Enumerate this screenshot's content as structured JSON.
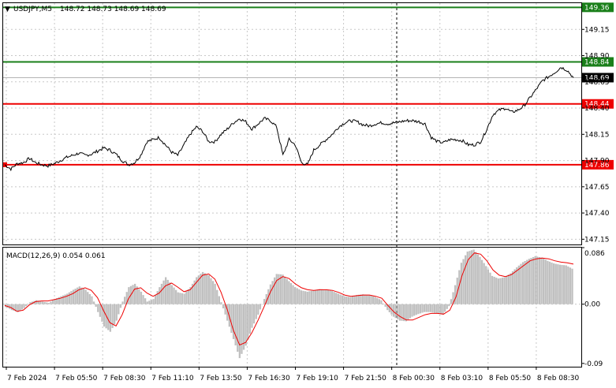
{
  "header": {
    "symbol_text": "USDJPY,M5",
    "ohlc_text": "148.72 148.73 148.69 148.69"
  },
  "colors": {
    "green_line": "#1a7f1a",
    "red_line": "#ee0000",
    "price_line": "#000000",
    "macd_hist": "#c0c0c0",
    "signal": "#ee0000",
    "grid": "#c8c8c8",
    "current_price_bg": "#000000"
  },
  "chart_data": [
    {
      "type": "line",
      "title": "",
      "ylim": [
        147.1,
        149.4
      ],
      "price_ticks": [
        "149.15",
        "148.90",
        "148.65",
        "148.40",
        "148.15",
        "147.90",
        "147.65",
        "147.40",
        "147.15"
      ],
      "price_tick_values": [
        149.15,
        148.9,
        148.65,
        148.4,
        148.15,
        147.9,
        147.65,
        147.4,
        147.15
      ],
      "time_labels": [
        "7 Feb 2024",
        "7 Feb 05:50",
        "7 Feb 08:30",
        "7 Feb 11:10",
        "7 Feb 13:50",
        "7 Feb 16:30",
        "7 Feb 19:10",
        "7 Feb 21:50",
        "8 Feb 00:30",
        "8 Feb 03:10",
        "8 Feb 05:50",
        "8 Feb 08:30"
      ],
      "horizontal_levels": [
        {
          "value": 149.36,
          "label": "149.36",
          "color": "green"
        },
        {
          "value": 148.84,
          "label": "148.84",
          "color": "green"
        },
        {
          "value": 148.44,
          "label": "148.44",
          "color": "red"
        },
        {
          "value": 147.86,
          "label": "147.86",
          "color": "red"
        }
      ],
      "current_price": {
        "value": 148.69,
        "label": "148.69"
      },
      "series": [
        {
          "values": [
            147.86,
            147.82,
            147.87,
            147.88,
            147.92,
            147.88,
            147.86,
            147.85,
            147.87,
            147.9,
            147.93,
            147.95,
            147.97,
            147.95,
            147.96,
            147.99,
            148.02,
            148.0,
            147.96,
            147.9,
            147.86,
            147.88,
            147.95,
            148.08,
            148.1,
            148.12,
            148.05,
            147.98,
            147.95,
            148.05,
            148.15,
            148.22,
            148.18,
            148.08,
            148.08,
            148.15,
            148.2,
            148.26,
            148.3,
            148.27,
            148.2,
            148.25,
            148.3,
            148.28,
            148.22,
            147.95,
            148.1,
            148.05,
            147.88,
            147.86,
            148.0,
            148.05,
            148.1,
            148.15,
            148.22,
            148.26,
            148.28,
            148.27,
            148.24,
            148.23,
            148.25,
            148.26,
            148.25,
            148.26,
            148.27,
            148.28,
            148.28,
            148.27,
            148.25,
            148.12,
            148.08,
            148.07,
            148.1,
            148.1,
            148.09,
            148.05,
            148.05,
            148.08,
            148.2,
            148.34,
            148.38,
            148.4,
            148.36,
            148.38,
            148.42,
            148.5,
            148.58,
            148.66,
            148.7,
            148.74,
            148.79,
            148.76,
            148.69
          ]
        }
      ]
    },
    {
      "type": "bar",
      "title": "",
      "indicator_label": "MACD(12,26,9) 0.054 0.061",
      "ylim": [
        -0.095,
        0.086
      ],
      "ticks": [
        "0.086",
        "0.00",
        "-0.09"
      ],
      "tick_values": [
        0.086,
        0.0,
        -0.09
      ],
      "series": [
        {
          "name": "MACD",
          "values": [
            -0.004,
            -0.009,
            -0.012,
            -0.006,
            0.003,
            0.006,
            0.004,
            0.002,
            0.008,
            0.012,
            0.016,
            0.022,
            0.027,
            0.022,
            0.012,
            -0.012,
            -0.034,
            -0.042,
            -0.025,
            0.004,
            0.026,
            0.031,
            0.019,
            0.004,
            0.008,
            0.026,
            0.041,
            0.029,
            0.018,
            0.016,
            0.026,
            0.041,
            0.049,
            0.044,
            0.031,
            0.003,
            -0.025,
            -0.053,
            -0.082,
            -0.063,
            -0.036,
            -0.016,
            0.008,
            0.03,
            0.046,
            0.045,
            0.035,
            0.026,
            0.021,
            0.019,
            0.021,
            0.023,
            0.022,
            0.02,
            0.016,
            0.012,
            0.011,
            0.014,
            0.015,
            0.014,
            0.011,
            0.006,
            -0.009,
            -0.019,
            -0.025,
            -0.026,
            -0.019,
            -0.015,
            -0.012,
            -0.012,
            -0.014,
            -0.016,
            -0.003,
            0.029,
            0.063,
            0.08,
            0.083,
            0.072,
            0.058,
            0.043,
            0.039,
            0.041,
            0.047,
            0.056,
            0.064,
            0.069,
            0.073,
            0.071,
            0.066,
            0.062,
            0.06,
            0.059,
            0.054
          ]
        },
        {
          "name": "Signal",
          "values": [
            -0.002,
            -0.005,
            -0.011,
            -0.009,
            -0.001,
            0.004,
            0.005,
            0.005,
            0.007,
            0.009,
            0.012,
            0.016,
            0.022,
            0.025,
            0.021,
            0.01,
            -0.01,
            -0.028,
            -0.033,
            -0.016,
            0.008,
            0.023,
            0.025,
            0.017,
            0.012,
            0.017,
            0.028,
            0.032,
            0.026,
            0.019,
            0.022,
            0.033,
            0.044,
            0.046,
            0.038,
            0.018,
            -0.008,
            -0.04,
            -0.062,
            -0.058,
            -0.043,
            -0.024,
            -0.003,
            0.019,
            0.036,
            0.042,
            0.039,
            0.031,
            0.025,
            0.022,
            0.021,
            0.022,
            0.022,
            0.021,
            0.018,
            0.014,
            0.012,
            0.013,
            0.014,
            0.014,
            0.012,
            0.009,
            -0.002,
            -0.012,
            -0.019,
            -0.024,
            -0.024,
            -0.02,
            -0.016,
            -0.014,
            -0.014,
            -0.015,
            -0.009,
            0.011,
            0.044,
            0.068,
            0.078,
            0.076,
            0.066,
            0.052,
            0.044,
            0.042,
            0.045,
            0.052,
            0.059,
            0.066,
            0.069,
            0.07,
            0.069,
            0.066,
            0.064,
            0.063,
            0.061
          ]
        }
      ]
    }
  ]
}
